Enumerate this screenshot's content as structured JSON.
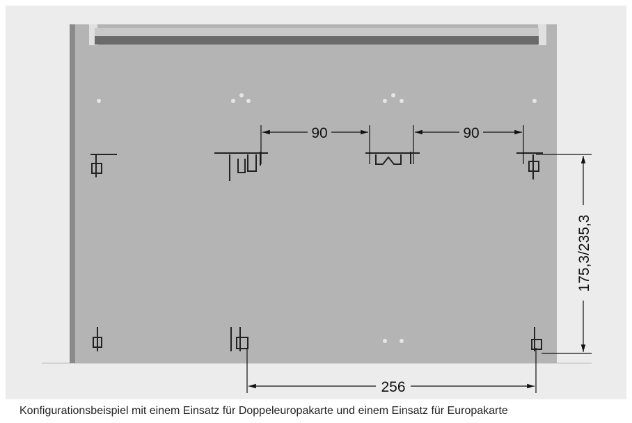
{
  "dimensions": [
    "90",
    "90",
    "175,3/235,3",
    "256"
  ],
  "caption": "Konfigurationsbeispiel mit einem Einsatz für Doppeleuropakarte und einem Einsatz für Europakarte"
}
